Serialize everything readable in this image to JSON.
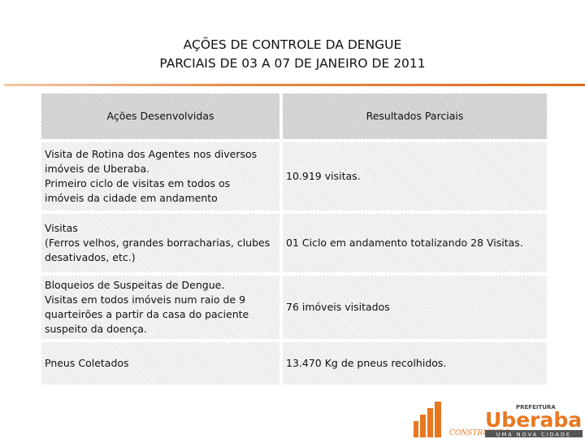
{
  "header": {
    "title": [
      "AÇÕES DE CONTROLE DA DENGUE",
      "PARCIAIS DE 03 A 07 DE JANEIRO DE 2011"
    ]
  },
  "table": {
    "columns": [
      "Ações Desenvolvidas",
      "Resultados Parciais"
    ],
    "rows": [
      [
        [
          "Visita de Rotina dos Agentes nos diversos",
          "imóveis de Uberaba.",
          "Primeiro ciclo de visitas em todos os",
          "imóveis da cidade em andamento"
        ],
        [
          "10.919 visitas."
        ]
      ],
      [
        [
          "Visitas",
          "(Ferros velhos, grandes borracharias, clubes",
          "desativados, etc.)"
        ],
        [
          "01 Ciclo em andamento totalizando 28 Visitas."
        ]
      ],
      [
        [
          "Bloqueios de Suspeitas de Dengue.",
          "Visitas em todos imóveis num raio de 9",
          "quarteirões a partir da casa do paciente",
          "suspeito da doença."
        ],
        [
          "76 imóveis visitados"
        ]
      ],
      [
        [
          "Pneus Coletados"
        ],
        [
          "13.470 Kg de pneus recolhidos."
        ]
      ]
    ]
  },
  "logo": {
    "top": "PREFEITURA",
    "name": "Uberaba",
    "tagline": "UMA NOVA CIDADE",
    "script": "CONSTRUINDO"
  }
}
